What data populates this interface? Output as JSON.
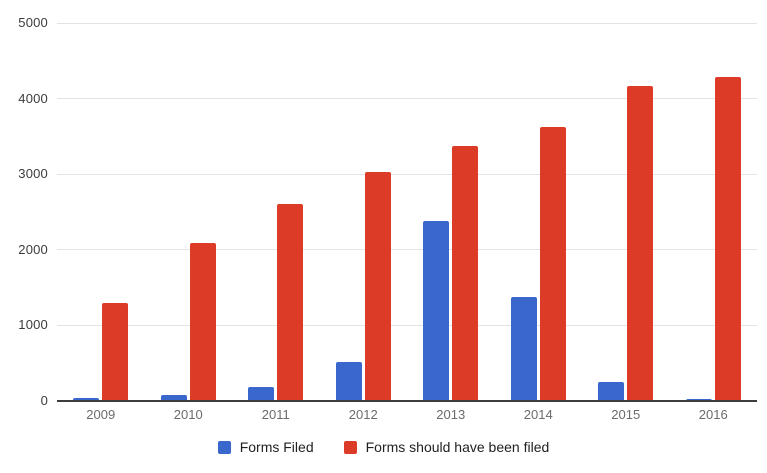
{
  "chart_data": {
    "type": "bar",
    "title": "",
    "xlabel": "",
    "ylabel": "",
    "categories": [
      "2009",
      "2010",
      "2011",
      "2012",
      "2013",
      "2014",
      "2015",
      "2016"
    ],
    "series": [
      {
        "name": "Forms Filed",
        "color": "#3A67CB",
        "values": [
          35,
          80,
          190,
          520,
          2380,
          1375,
          250,
          30
        ]
      },
      {
        "name": "Forms should have been filed",
        "color": "#DB3B27",
        "values": [
          1295,
          2090,
          2605,
          3030,
          3370,
          3630,
          4170,
          4290
        ]
      }
    ],
    "ylim": [
      0,
      5000
    ],
    "yticks": [
      0,
      1000,
      2000,
      3000,
      4000,
      5000
    ],
    "grid": true,
    "legend_position": "bottom"
  },
  "colors": {
    "background": "#FFFFFF",
    "gridline": "#E3E3E3",
    "axis_line": "#3D3D3D",
    "y_label": "#3C3C3C",
    "x_label": "#6B6B6B",
    "legend_label": "#1F1F1F"
  }
}
